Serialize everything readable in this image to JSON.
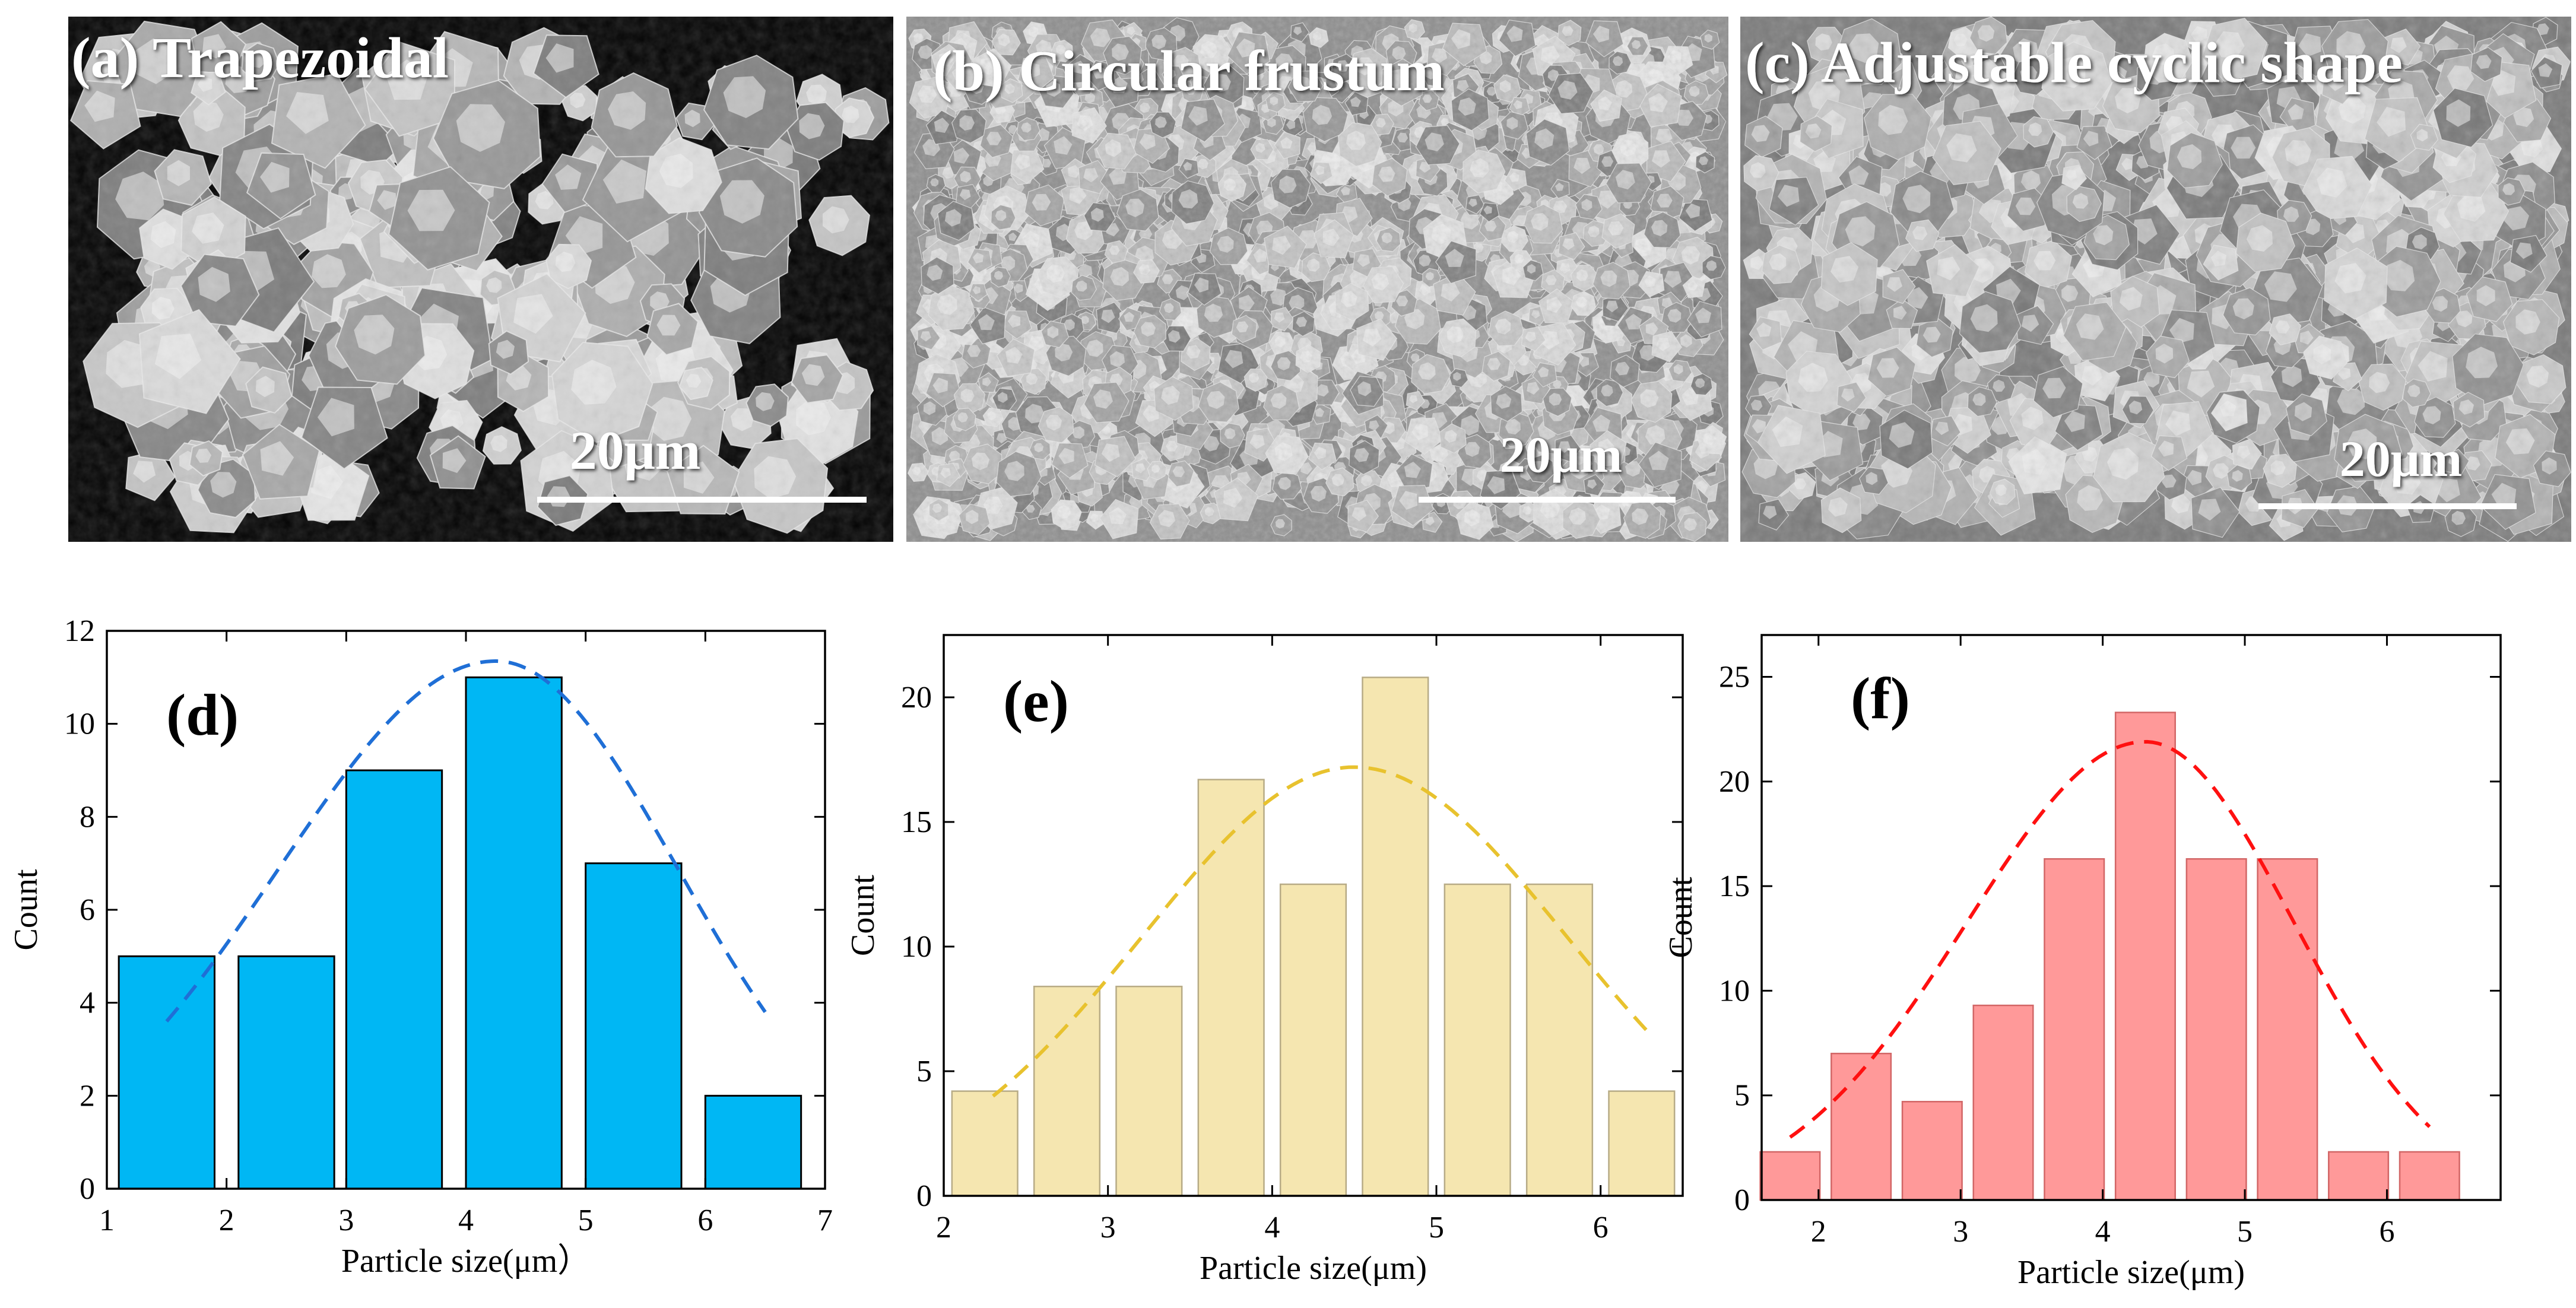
{
  "sem_panels": [
    {
      "label": "(a) Trapezoidal",
      "scale_text": "20μm",
      "morphology": "sparse-particles"
    },
    {
      "label": "(b) Circular frustum",
      "scale_text": "20μm",
      "morphology": "dense-fine-crystals"
    },
    {
      "label": "(c) Adjustable cyclic shape",
      "scale_text": "20μm",
      "morphology": "dense-coarse-crystals"
    }
  ],
  "chart_data": [
    {
      "type": "bar",
      "panel_label": "(d)",
      "xlabel": "Particle size(μm）",
      "ylabel": "Count",
      "xlim": [
        1,
        7
      ],
      "ylim": [
        0,
        12
      ],
      "xticks": [
        1,
        2,
        3,
        4,
        5,
        6,
        7
      ],
      "yticks": [
        0,
        2,
        4,
        6,
        8,
        10,
        12
      ],
      "bin_width": 0.8,
      "x": [
        1.5,
        2.5,
        3.4,
        4.4,
        5.4,
        6.4
      ],
      "values": [
        5,
        5,
        9,
        11,
        7,
        2
      ],
      "fit_curve": {
        "style": "dashed",
        "peak_x": 4.25,
        "peak_y": 11.35,
        "start": [
          1.5,
          3.6
        ],
        "end": [
          6.5,
          3.8
        ]
      },
      "bar_color": "#00b7f4",
      "bar_edge": "#000000",
      "curve_color": "#1f6fd6",
      "grid": false
    },
    {
      "type": "bar",
      "panel_label": "(e)",
      "xlabel": "Particle size(μm)",
      "ylabel": "Count",
      "xlim": [
        2,
        6.5
      ],
      "ylim": [
        0,
        22.5
      ],
      "xticks": [
        2,
        3,
        4,
        5,
        6
      ],
      "yticks": [
        0,
        5,
        10,
        15,
        20
      ],
      "bin_width": 0.4,
      "x": [
        2.25,
        2.75,
        3.25,
        3.75,
        4.25,
        4.75,
        5.25,
        5.75,
        6.25
      ],
      "values": [
        4.2,
        8.4,
        8.4,
        16.7,
        12.5,
        20.8,
        12.5,
        12.5,
        4.2
      ],
      "fit_curve": {
        "style": "dashed",
        "peak_x": 4.5,
        "peak_y": 17.2,
        "start": [
          2.3,
          4.0
        ],
        "end": [
          6.3,
          6.5
        ]
      },
      "bar_color": "#f5e6b0",
      "bar_edge": "#b7ab86",
      "curve_color": "#e8c22e",
      "grid": false
    },
    {
      "type": "bar",
      "panel_label": "(f)",
      "xlabel": "Particle size(μm)",
      "ylabel": "Count",
      "xlim": [
        1.6,
        6.8
      ],
      "ylim": [
        0,
        27
      ],
      "xticks": [
        2,
        3,
        4,
        5,
        6
      ],
      "yticks": [
        0,
        5,
        10,
        15,
        20,
        25
      ],
      "bin_width": 0.42,
      "x": [
        1.8,
        2.3,
        2.8,
        3.3,
        3.8,
        4.3,
        4.8,
        5.3,
        5.8,
        6.3
      ],
      "values": [
        2.3,
        7.0,
        4.7,
        9.3,
        16.3,
        23.3,
        16.3,
        16.3,
        2.3,
        2.3
      ],
      "fit_curve": {
        "style": "dashed",
        "peak_x": 4.3,
        "peak_y": 21.9,
        "start": [
          1.8,
          3.0
        ],
        "end": [
          6.3,
          3.5
        ]
      },
      "bar_color": "#ff9999",
      "bar_edge": "#d26666",
      "curve_color": "#ff1010",
      "grid": false
    }
  ]
}
